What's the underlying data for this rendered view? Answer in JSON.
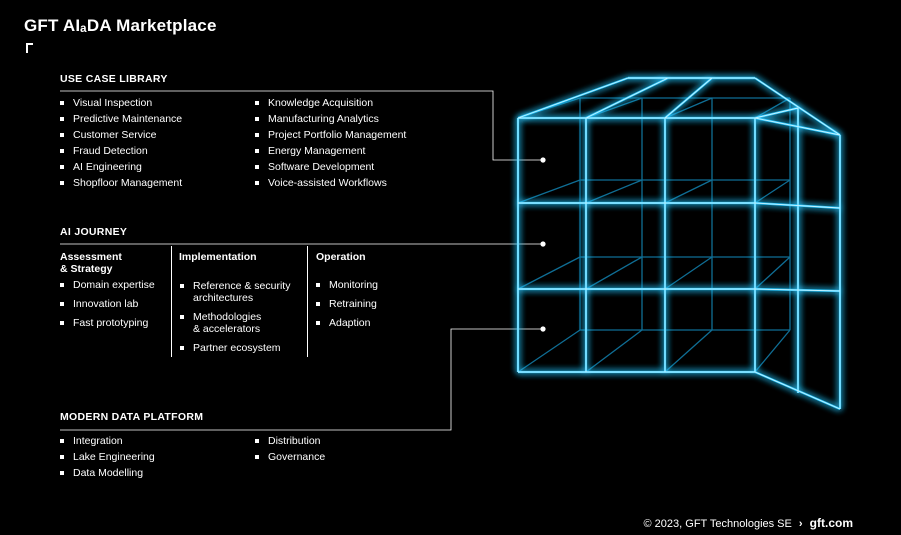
{
  "title": "GFT AIₐDA Marketplace",
  "use_case_library": {
    "heading": "USE CASE LIBRARY",
    "col1": [
      "Visual Inspection",
      "Predictive Maintenance",
      "Customer Service",
      "Fraud Detection",
      "AI Engineering",
      "Shopfloor Management"
    ],
    "col2": [
      "Knowledge Acquisition",
      "Manufacturing Analytics",
      "Project Portfolio Management",
      "Energy Management",
      "Software Development",
      "Voice-assisted Workflows"
    ]
  },
  "ai_journey": {
    "heading": "AI JOURNEY",
    "columns": [
      {
        "heading_l1": "Assessment",
        "heading_l2": "& Strategy",
        "items": [
          "Domain expertise",
          "Innovation lab",
          "Fast prototyping"
        ]
      },
      {
        "heading": "Implementation",
        "items": [
          [
            "Reference & security",
            "architectures"
          ],
          [
            "Methodologies",
            "& accelerators"
          ],
          [
            "Partner ecosystem"
          ]
        ]
      },
      {
        "heading": "Operation",
        "items": [
          "Monitoring",
          "Retraining",
          "Adaption"
        ]
      }
    ]
  },
  "modern_data_platform": {
    "heading": "MODERN DATA PLATFORM",
    "col1": [
      "Integration",
      "Lake Engineering",
      "Data Modelling"
    ],
    "col2": [
      "Distribution",
      "Governance"
    ]
  },
  "footer": {
    "copyright": "© 2023, GFT Technologies SE",
    "separator": "›",
    "link": "gft.com"
  },
  "colors": {
    "background": "#000000",
    "text": "#ffffff",
    "glow": "#29c7ff",
    "glow_core": "#c8f4ff"
  }
}
